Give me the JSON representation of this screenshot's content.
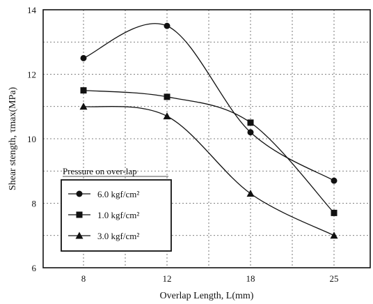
{
  "chart_data": {
    "type": "line",
    "xlabel": "Overlap Length, L(mm)",
    "ylabel": "Shear stength, τmax(MPa)",
    "categories": [
      "8",
      "12",
      "18",
      "25"
    ],
    "ylim": [
      6,
      14
    ],
    "yticks": [
      "6",
      "8",
      "10",
      "12",
      "14"
    ],
    "grid": true,
    "legend_title": "Pressure on over-lap",
    "legend_position": "bottom-left",
    "series": [
      {
        "name": "6.0 kgf/cm²",
        "marker": "circle",
        "values": [
          12.5,
          13.5,
          10.2,
          8.7
        ]
      },
      {
        "name": "1.0 kgf/cm²",
        "marker": "square",
        "values": [
          11.5,
          11.3,
          10.5,
          7.7
        ]
      },
      {
        "name": "3.0 kgf/cm²",
        "marker": "triangle",
        "values": [
          11.0,
          10.7,
          8.3,
          7.0
        ]
      }
    ]
  }
}
